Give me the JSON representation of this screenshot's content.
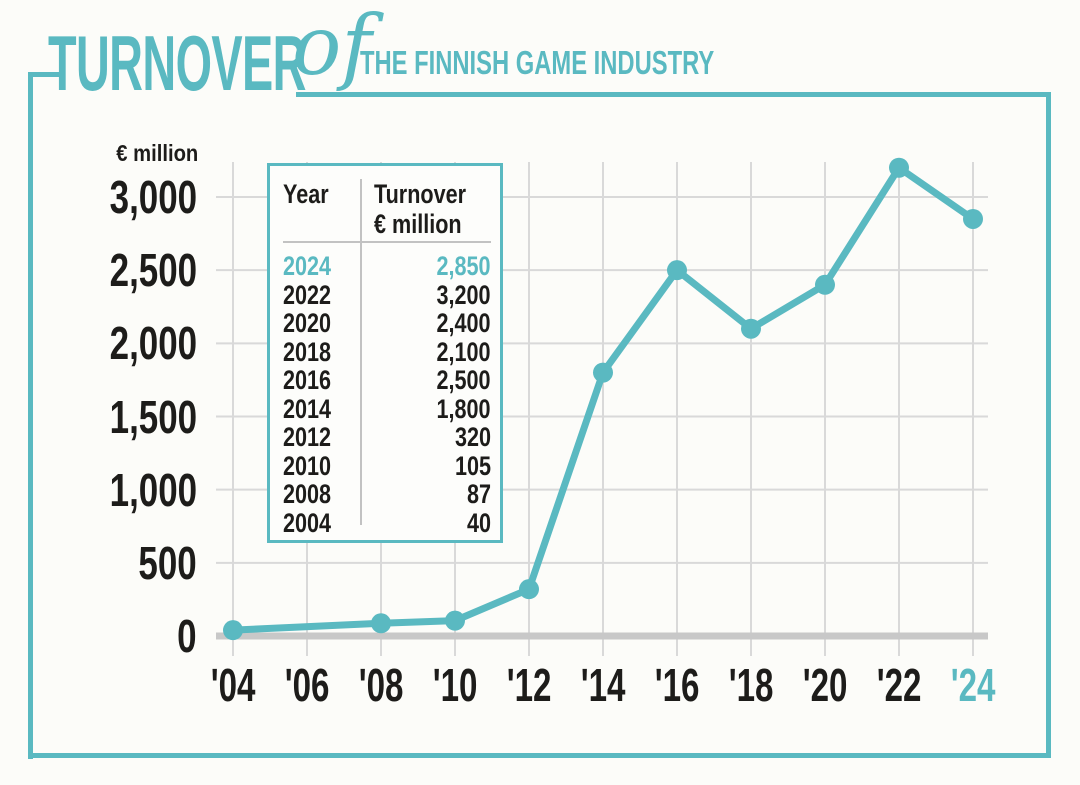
{
  "colors": {
    "teal": "#5ab9c1",
    "ink": "#1d1c1a",
    "grid": "#d9d9d9",
    "zero_line": "#c8c8c8",
    "table_line": "#c2c2c2",
    "background": "#fcfcf9",
    "table_background": "#fdfdfb"
  },
  "title": {
    "part1": "TURNOVER",
    "part2": "of",
    "part3": "THE FINNISH GAME INDUSTRY"
  },
  "y_axis": {
    "unit": "€ million",
    "ticks": [
      {
        "value": 3000,
        "label": "3,000"
      },
      {
        "value": 2500,
        "label": "2,500"
      },
      {
        "value": 2000,
        "label": "2,000"
      },
      {
        "value": 1500,
        "label": "1,500"
      },
      {
        "value": 1000,
        "label": "1,000"
      },
      {
        "value": 500,
        "label": "500"
      },
      {
        "value": 0,
        "label": "0"
      }
    ]
  },
  "x_axis": {
    "ticks": [
      {
        "year": 2004,
        "label": "'04"
      },
      {
        "year": 2006,
        "label": "'06"
      },
      {
        "year": 2008,
        "label": "'08"
      },
      {
        "year": 2010,
        "label": "'10"
      },
      {
        "year": 2012,
        "label": "'12"
      },
      {
        "year": 2014,
        "label": "'14"
      },
      {
        "year": 2016,
        "label": "'16"
      },
      {
        "year": 2018,
        "label": "'18"
      },
      {
        "year": 2020,
        "label": "'20"
      },
      {
        "year": 2022,
        "label": "'22"
      },
      {
        "year": 2024,
        "label": "'24",
        "highlight": true
      }
    ]
  },
  "chart_data": {
    "type": "line",
    "title": "Turnover of the Finnish Game Industry",
    "ylabel": "€ million",
    "xlabel": "",
    "x": [
      2004,
      2008,
      2010,
      2012,
      2014,
      2016,
      2018,
      2020,
      2022,
      2024
    ],
    "values": [
      40,
      87,
      105,
      320,
      1800,
      2500,
      2100,
      2400,
      3200,
      2850
    ],
    "ylim": [
      0,
      3000
    ],
    "xlim": [
      2004,
      2024
    ],
    "grid": true,
    "legend": "none",
    "series_color": "#5ab9c1"
  },
  "table": {
    "col_year_header": "Year",
    "col_value_header_line1": "Turnover",
    "col_value_header_line2": "€ million",
    "rows": [
      {
        "year": "2024",
        "value": "2,850",
        "highlight": true
      },
      {
        "year": "2022",
        "value": "3,200"
      },
      {
        "year": "2020",
        "value": "2,400"
      },
      {
        "year": "2018",
        "value": "2,100"
      },
      {
        "year": "2016",
        "value": "2,500"
      },
      {
        "year": "2014",
        "value": "1,800"
      },
      {
        "year": "2012",
        "value": "320"
      },
      {
        "year": "2010",
        "value": "105"
      },
      {
        "year": "2008",
        "value": "87"
      },
      {
        "year": "2004",
        "value": "40"
      }
    ]
  }
}
